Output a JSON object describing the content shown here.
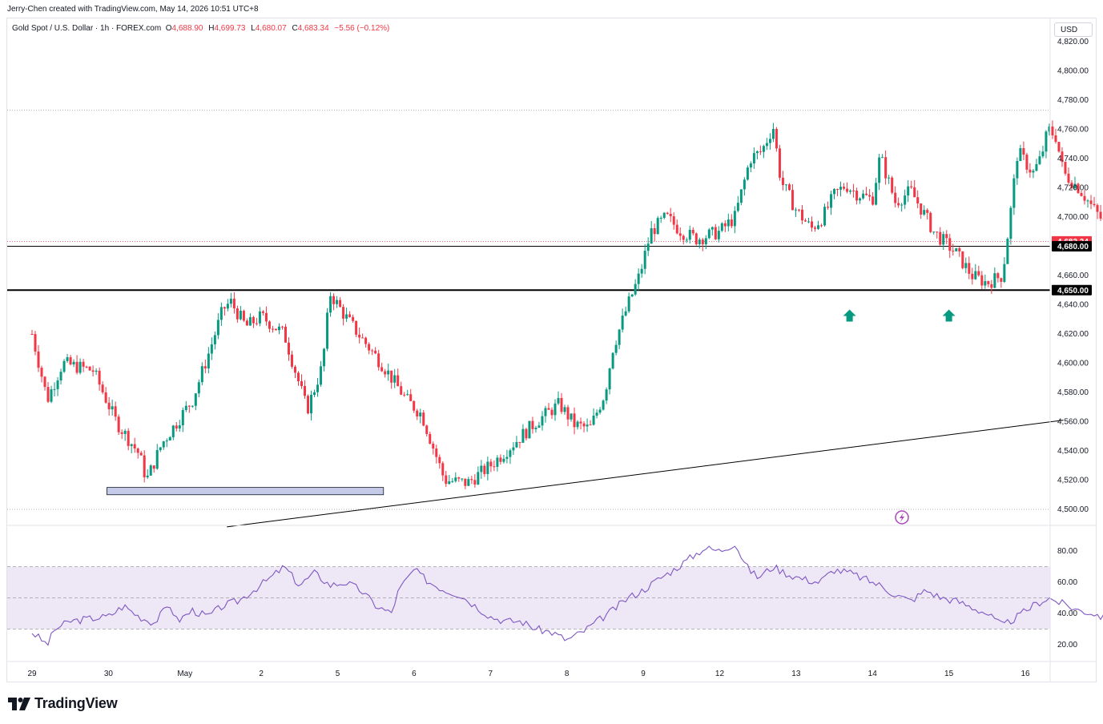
{
  "header": {
    "credit": "Jerry-Chen created with TradingView.com, May 14, 2026 10:51 UTC+8"
  },
  "legend": {
    "symbol": "Gold Spot / U.S. Dollar · 1h · FOREX.com",
    "o_label": "O",
    "o_value": "4,688.90",
    "h_label": "H",
    "h_value": "4,699.73",
    "l_label": "L",
    "l_value": "4,680.07",
    "c_label": "C",
    "c_value": "4,683.34",
    "change": "−5.56 (−0.12%)"
  },
  "currency": "USD",
  "brand": {
    "name": "TradingView"
  },
  "colors": {
    "up": "#089981",
    "down": "#f23645",
    "rsi": "#7e57c2",
    "rsi_band": "#ede7f6",
    "zone": "#c5cae9",
    "text": "#131722",
    "grid": "#e0e3eb"
  },
  "chart_data": [
    {
      "type": "candlestick",
      "symbol": "Gold Spot / U.S. Dollar",
      "timeframe": "1h",
      "ylim": [
        4500,
        4820
      ],
      "y_ticks": [
        "4,820.00",
        "4,800.00",
        "4,780.00",
        "4,760.00",
        "4,740.00",
        "4,720.00",
        "4,700.00",
        "4,680.00",
        "4,660.00",
        "4,640.00",
        "4,620.00",
        "4,600.00",
        "4,580.00",
        "4,560.00",
        "4,540.00",
        "4,520.00",
        "4,500.00"
      ],
      "x_ticks": [
        "29",
        "30",
        "May",
        "2",
        "5",
        "6",
        "7",
        "8",
        "9",
        "12",
        "13",
        "14",
        "15",
        "16"
      ],
      "last_price": {
        "value": 4683.34,
        "label": "4,683.34"
      },
      "levels": [
        {
          "value": 4680,
          "label": "4,680.00"
        },
        {
          "value": 4650,
          "label": "4,650.00"
        }
      ],
      "dotted_levels": [
        4773,
        4500
      ],
      "support_zone": {
        "from_day": 0.98,
        "to_day": 4.6,
        "low": 4510,
        "high": 4515
      },
      "trendline": [
        {
          "day": 2.55,
          "price": 4488
        },
        {
          "day": 13.5,
          "price": 4561
        }
      ],
      "markers": [
        {
          "day": 10.7,
          "price": 4640,
          "type": "up-arrow"
        },
        {
          "day": 12.0,
          "price": 4640,
          "type": "up-arrow"
        }
      ],
      "path": [
        [
          0,
          4620
        ],
        [
          0.2,
          4575
        ],
        [
          0.4,
          4600
        ],
        [
          0.8,
          4595
        ],
        [
          1.1,
          4560
        ],
        [
          1.4,
          4538
        ],
        [
          1.5,
          4520
        ],
        [
          1.7,
          4545
        ],
        [
          1.9,
          4560
        ],
        [
          2.1,
          4575
        ],
        [
          2.3,
          4605
        ],
        [
          2.5,
          4637
        ],
        [
          2.6,
          4642
        ],
        [
          2.8,
          4625
        ],
        [
          3.0,
          4632
        ],
        [
          3.3,
          4620
        ],
        [
          3.6,
          4568
        ],
        [
          3.8,
          4598
        ],
        [
          3.9,
          4648
        ],
        [
          4.1,
          4632
        ],
        [
          4.3,
          4618
        ],
        [
          4.6,
          4598
        ],
        [
          4.9,
          4575
        ],
        [
          5.1,
          4565
        ],
        [
          5.4,
          4520
        ],
        [
          5.7,
          4518
        ],
        [
          6.0,
          4530
        ],
        [
          6.3,
          4545
        ],
        [
          6.6,
          4560
        ],
        [
          6.9,
          4572
        ],
        [
          7.1,
          4558
        ],
        [
          7.3,
          4555
        ],
        [
          7.5,
          4580
        ],
        [
          7.6,
          4610
        ],
        [
          7.8,
          4640
        ],
        [
          7.95,
          4660
        ],
        [
          8.1,
          4690
        ],
        [
          8.3,
          4700
        ],
        [
          8.5,
          4690
        ],
        [
          8.7,
          4685
        ],
        [
          9.0,
          4690
        ],
        [
          9.2,
          4700
        ],
        [
          9.4,
          4740
        ],
        [
          9.55,
          4745
        ],
        [
          9.7,
          4762
        ],
        [
          9.8,
          4725
        ],
        [
          10.0,
          4705
        ],
        [
          10.2,
          4692
        ],
        [
          10.35,
          4700
        ],
        [
          10.5,
          4715
        ],
        [
          10.65,
          4722
        ],
        [
          10.8,
          4716
        ],
        [
          11.0,
          4712
        ],
        [
          11.1,
          4742
        ],
        [
          11.3,
          4710
        ],
        [
          11.5,
          4718
        ],
        [
          11.7,
          4700
        ],
        [
          11.8,
          4690
        ],
        [
          12.1,
          4675
        ],
        [
          12.3,
          4660
        ],
        [
          12.5,
          4655
        ],
        [
          12.7,
          4660
        ],
        [
          12.8,
          4700
        ],
        [
          12.9,
          4745
        ],
        [
          13.1,
          4730
        ],
        [
          13.2,
          4740
        ],
        [
          13.3,
          4760
        ],
        [
          13.4,
          4755
        ],
        [
          13.5,
          4730
        ],
        [
          13.7,
          4720
        ],
        [
          13.9,
          4705
        ],
        [
          14.05,
          4695
        ],
        [
          14.2,
          4690
        ],
        [
          14.4,
          4668
        ],
        [
          14.5,
          4680
        ],
        [
          14.65,
          4712
        ],
        [
          14.8,
          4718
        ],
        [
          15.0,
          4705
        ],
        [
          15.15,
          4700
        ],
        [
          15.3,
          4695
        ],
        [
          15.45,
          4700
        ],
        [
          15.6,
          4690
        ],
        [
          15.7,
          4678
        ],
        [
          15.85,
          4686
        ],
        [
          16.0,
          4690
        ],
        [
          16.1,
          4697
        ],
        [
          16.18,
          4685
        ]
      ]
    },
    {
      "type": "line",
      "name": "RSI",
      "ylim": [
        10,
        90
      ],
      "y_ticks": [
        "80.00",
        "60.00",
        "40.00",
        "20.00"
      ],
      "band": [
        30,
        70
      ],
      "midline": 50,
      "values": [
        [
          0,
          28
        ],
        [
          0.2,
          20
        ],
        [
          0.3,
          30
        ],
        [
          0.5,
          35
        ],
        [
          0.8,
          37
        ],
        [
          1.0,
          38
        ],
        [
          1.2,
          45
        ],
        [
          1.4,
          38
        ],
        [
          1.6,
          34
        ],
        [
          1.8,
          46
        ],
        [
          1.9,
          35
        ],
        [
          2.1,
          42
        ],
        [
          2.3,
          38
        ],
        [
          2.5,
          45
        ],
        [
          2.7,
          48
        ],
        [
          2.9,
          55
        ],
        [
          3.1,
          62
        ],
        [
          3.3,
          70
        ],
        [
          3.5,
          58
        ],
        [
          3.7,
          66
        ],
        [
          3.9,
          58
        ],
        [
          4.1,
          60
        ],
        [
          4.3,
          55
        ],
        [
          4.5,
          45
        ],
        [
          4.7,
          40
        ],
        [
          4.8,
          55
        ],
        [
          5.0,
          68
        ],
        [
          5.2,
          60
        ],
        [
          5.4,
          55
        ],
        [
          5.6,
          52
        ],
        [
          5.8,
          45
        ],
        [
          6.0,
          38
        ],
        [
          6.2,
          35
        ],
        [
          6.4,
          35
        ],
        [
          6.6,
          30
        ],
        [
          6.8,
          28
        ],
        [
          7.0,
          23
        ],
        [
          7.2,
          28
        ],
        [
          7.4,
          35
        ],
        [
          7.6,
          42
        ],
        [
          7.8,
          50
        ],
        [
          8.0,
          55
        ],
        [
          8.2,
          62
        ],
        [
          8.4,
          68
        ],
        [
          8.6,
          75
        ],
        [
          8.8,
          82
        ],
        [
          9.0,
          80
        ],
        [
          9.2,
          85
        ],
        [
          9.35,
          70
        ],
        [
          9.5,
          63
        ],
        [
          9.7,
          70
        ],
        [
          9.9,
          65
        ],
        [
          10.1,
          62
        ],
        [
          10.3,
          60
        ],
        [
          10.5,
          68
        ],
        [
          10.7,
          66
        ],
        [
          10.9,
          62
        ],
        [
          11.1,
          58
        ],
        [
          11.3,
          52
        ],
        [
          11.5,
          48
        ],
        [
          11.7,
          55
        ],
        [
          11.9,
          50
        ],
        [
          12.1,
          48
        ],
        [
          12.3,
          44
        ],
        [
          12.5,
          40
        ],
        [
          12.7,
          32
        ],
        [
          12.9,
          38
        ],
        [
          13.1,
          45
        ],
        [
          13.3,
          50
        ],
        [
          13.5,
          46
        ],
        [
          13.7,
          42
        ],
        [
          13.9,
          40
        ],
        [
          14.1,
          36
        ],
        [
          14.3,
          40
        ],
        [
          14.5,
          45
        ],
        [
          14.7,
          55
        ],
        [
          14.9,
          52
        ],
        [
          15.1,
          48
        ],
        [
          15.3,
          46
        ],
        [
          15.5,
          50
        ],
        [
          15.7,
          42
        ],
        [
          15.9,
          48
        ],
        [
          16.1,
          52
        ],
        [
          16.2,
          43
        ]
      ]
    }
  ]
}
